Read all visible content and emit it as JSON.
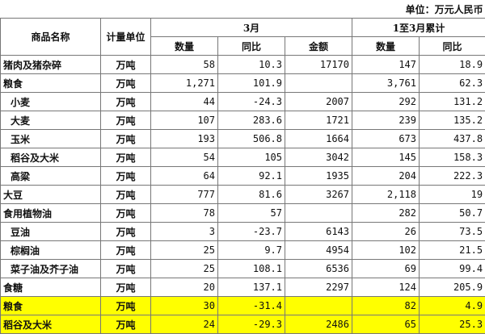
{
  "unit_note": "单位：万元人民币",
  "headers": {
    "name": "商品名称",
    "unit": "计量单位",
    "march": "3月",
    "cumulative": "1至3月累计",
    "qty": "数量",
    "yoy": "同比",
    "amount": "金额",
    "cum_qty": "数量",
    "cum_yoy": "同比"
  },
  "highlight_color": "#ffff00",
  "rows": [
    {
      "name": "猪肉及猪杂碎",
      "unit": "万吨",
      "qty": "58",
      "yoy": "10.3",
      "amount": "17170",
      "cum_qty": "147",
      "cum_yoy": "18.9"
    },
    {
      "name": "粮食",
      "unit": "万吨",
      "qty": "1,271",
      "yoy": "101.9",
      "amount": "",
      "cum_qty": "3,761",
      "cum_yoy": "62.3"
    },
    {
      "name": "小麦",
      "unit": "万吨",
      "qty": "44",
      "yoy": "-24.3",
      "amount": "2007",
      "cum_qty": "292",
      "cum_yoy": "131.2"
    },
    {
      "name": "大麦",
      "unit": "万吨",
      "qty": "107",
      "yoy": "283.6",
      "amount": "1721",
      "cum_qty": "239",
      "cum_yoy": "135.2"
    },
    {
      "name": "玉米",
      "unit": "万吨",
      "qty": "193",
      "yoy": "506.8",
      "amount": "1664",
      "cum_qty": "673",
      "cum_yoy": "437.8"
    },
    {
      "name": "稻谷及大米",
      "unit": "万吨",
      "qty": "54",
      "yoy": "105",
      "amount": "3042",
      "cum_qty": "145",
      "cum_yoy": "158.3"
    },
    {
      "name": "高粱",
      "unit": "万吨",
      "qty": "64",
      "yoy": "92.1",
      "amount": "1935",
      "cum_qty": "204",
      "cum_yoy": "222.3"
    },
    {
      "name": "大豆",
      "unit": "万吨",
      "qty": "777",
      "yoy": "81.6",
      "amount": "3267",
      "cum_qty": "2,118",
      "cum_yoy": "19"
    },
    {
      "name": "食用植物油",
      "unit": "万吨",
      "qty": "78",
      "yoy": "57",
      "amount": "",
      "cum_qty": "282",
      "cum_yoy": "50.7"
    },
    {
      "name": "豆油",
      "unit": "万吨",
      "qty": "3",
      "yoy": "-23.7",
      "amount": "6143",
      "cum_qty": "26",
      "cum_yoy": "73.5"
    },
    {
      "name": "棕榈油",
      "unit": "万吨",
      "qty": "25",
      "yoy": "9.7",
      "amount": "4954",
      "cum_qty": "102",
      "cum_yoy": "21.5"
    },
    {
      "name": "菜子油及芥子油",
      "unit": "万吨",
      "qty": "25",
      "yoy": "108.1",
      "amount": "6536",
      "cum_qty": "69",
      "cum_yoy": "99.4"
    },
    {
      "name": "食糖",
      "unit": "万吨",
      "qty": "20",
      "yoy": "137.1",
      "amount": "2297",
      "cum_qty": "124",
      "cum_yoy": "205.9"
    },
    {
      "name": "粮食",
      "unit": "万吨",
      "qty": "30",
      "yoy": "-31.4",
      "amount": "",
      "cum_qty": "82",
      "cum_yoy": "4.9"
    },
    {
      "name": "稻谷及大米",
      "unit": "万吨",
      "qty": "24",
      "yoy": "-29.3",
      "amount": "2486",
      "cum_qty": "65",
      "cum_yoy": "25.3"
    }
  ]
}
